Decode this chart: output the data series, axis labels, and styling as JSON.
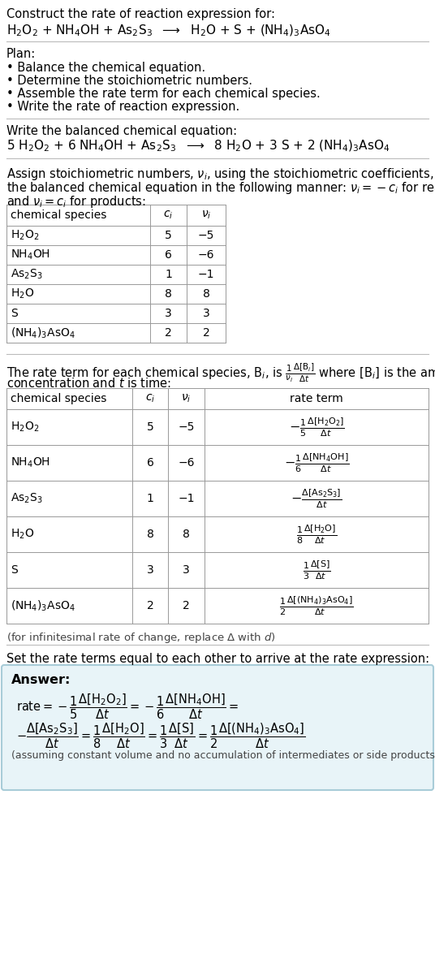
{
  "bg_color": "#ffffff",
  "text_color": "#000000",
  "title_line1": "Construct the rate of reaction expression for:",
  "plan_header": "Plan:",
  "plan_items": [
    "• Balance the chemical equation.",
    "• Determine the stoichiometric numbers.",
    "• Assemble the rate term for each chemical species.",
    "• Write the rate of reaction expression."
  ],
  "balanced_header": "Write the balanced chemical equation:",
  "assign_text1": "Assign stoichiometric numbers, $\\nu_i$, using the stoichiometric coefficients, $c_i$, from",
  "assign_text2": "the balanced chemical equation in the following manner: $\\nu_i = -c_i$ for reactants",
  "assign_text3": "and $\\nu_i = c_i$ for products:",
  "table1_headers": [
    "chemical species",
    "$c_i$",
    "$\\nu_i$"
  ],
  "table1_rows": [
    [
      "H$_2$O$_2$",
      "5",
      "−5"
    ],
    [
      "NH$_4$OH",
      "6",
      "−6"
    ],
    [
      "As$_2$S$_3$",
      "1",
      "−1"
    ],
    [
      "H$_2$O",
      "8",
      "8"
    ],
    [
      "S",
      "3",
      "3"
    ],
    [
      "(NH$_4$)$_3$AsO$_4$",
      "2",
      "2"
    ]
  ],
  "rate_text1": "The rate term for each chemical species, B$_i$, is $\\frac{1}{\\nu_i}\\frac{\\Delta[\\mathrm{B}_i]}{\\Delta t}$ where [B$_i$] is the amount",
  "rate_text2": "concentration and $t$ is time:",
  "table2_headers": [
    "chemical species",
    "$c_i$",
    "$\\nu_i$",
    "rate term"
  ],
  "table2_rows": [
    [
      "H$_2$O$_2$",
      "5",
      "−5",
      "$-\\frac{1}{5}\\frac{\\Delta[\\mathrm{H_2O_2}]}{\\Delta t}$"
    ],
    [
      "NH$_4$OH",
      "6",
      "−6",
      "$-\\frac{1}{6}\\frac{\\Delta[\\mathrm{NH_4OH}]}{\\Delta t}$"
    ],
    [
      "As$_2$S$_3$",
      "1",
      "−1",
      "$-\\frac{\\Delta[\\mathrm{As_2S_3}]}{\\Delta t}$"
    ],
    [
      "H$_2$O",
      "8",
      "8",
      "$\\frac{1}{8}\\frac{\\Delta[\\mathrm{H_2O}]}{\\Delta t}$"
    ],
    [
      "S",
      "3",
      "3",
      "$\\frac{1}{3}\\frac{\\Delta[\\mathrm{S}]}{\\Delta t}$"
    ],
    [
      "(NH$_4$)$_3$AsO$_4$",
      "2",
      "2",
      "$\\frac{1}{2}\\frac{\\Delta[(\\mathrm{NH_4})_3\\mathrm{AsO_4}]}{\\Delta t}$"
    ]
  ],
  "infinitesimal_note": "(for infinitesimal rate of change, replace Δ with $d$)",
  "set_rate_text": "Set the rate terms equal to each other to arrive at the rate expression:",
  "answer_box_color": "#e8f4f8",
  "answer_box_border": "#a8ccd8",
  "answer_label": "Answer:",
  "answer_footnote": "(assuming constant volume and no accumulation of intermediates or side products)"
}
